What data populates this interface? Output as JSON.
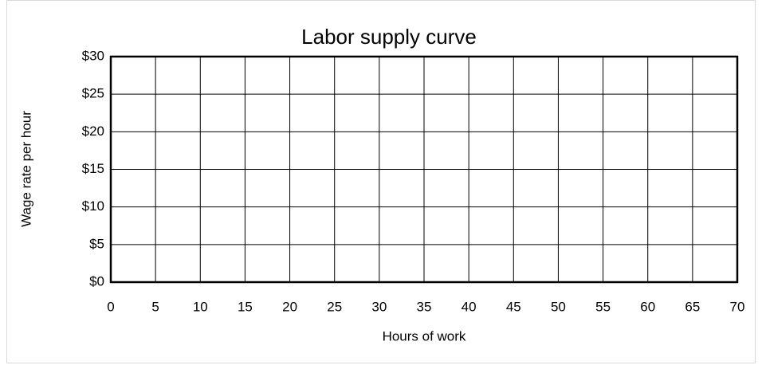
{
  "chart_data": {
    "type": "line",
    "title": "Labor supply curve",
    "x_label": "Hours of work",
    "y_label": "Wage rate per hour",
    "xlim": [
      0,
      70
    ],
    "xticks": [
      0,
      5,
      10,
      15,
      20,
      25,
      30,
      35,
      40,
      45,
      50,
      55,
      60,
      65,
      70
    ],
    "ylim": [
      0,
      30
    ],
    "yticks": [
      {
        "value": 0,
        "label": "$0"
      },
      {
        "value": 5,
        "label": "$5"
      },
      {
        "value": 10,
        "label": "$10"
      },
      {
        "value": 15,
        "label": "$15"
      },
      {
        "value": 20,
        "label": "$20"
      },
      {
        "value": 25,
        "label": "$25"
      },
      {
        "value": 30,
        "label": "$30"
      }
    ],
    "grid": true
  }
}
